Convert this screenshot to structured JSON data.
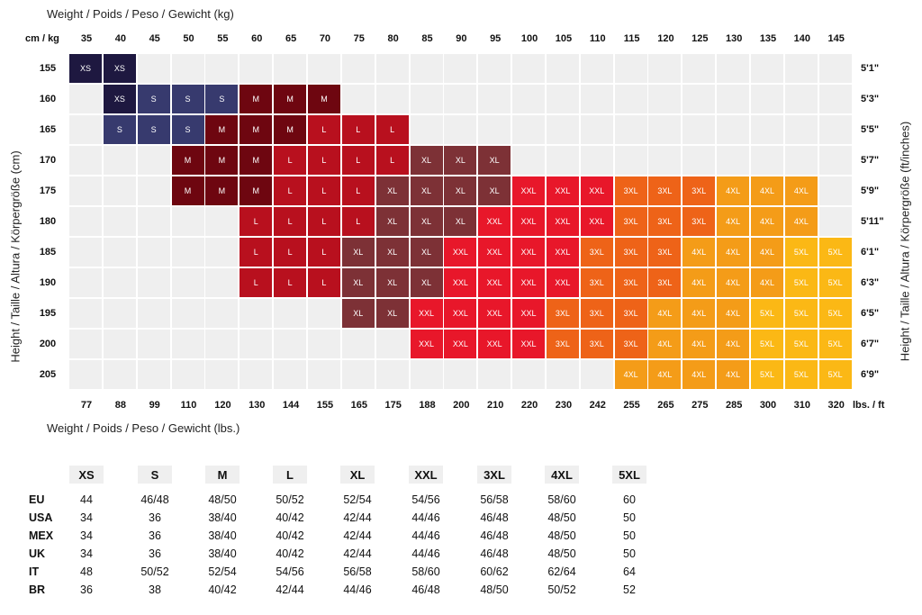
{
  "chart_data": {
    "type": "heatmap",
    "title_top": "Weight / Poids / Peso / Gewicht (kg)",
    "title_bottom": "Weight / Poids / Peso / Gewicht (lbs.)",
    "ylabel_left": "Height / Taille / Altura / Körpergröße (cm)",
    "ylabel_right": "Height / Taille / Altura / Körpergröße (ft/inches)",
    "corner_top": "cm / kg",
    "corner_bottom": "lbs. / ft",
    "kg": [
      "35",
      "40",
      "45",
      "50",
      "55",
      "60",
      "65",
      "70",
      "75",
      "80",
      "85",
      "90",
      "95",
      "100",
      "105",
      "110",
      "115",
      "120",
      "125",
      "130",
      "135",
      "140",
      "145"
    ],
    "lbs": [
      "77",
      "88",
      "99",
      "110",
      "120",
      "130",
      "144",
      "155",
      "165",
      "175",
      "188",
      "200",
      "210",
      "220",
      "230",
      "242",
      "255",
      "265",
      "275",
      "285",
      "300",
      "310",
      "320"
    ],
    "cm": [
      "155",
      "160",
      "165",
      "170",
      "175",
      "180",
      "185",
      "190",
      "195",
      "200",
      "205"
    ],
    "ft": [
      "5'1\"",
      "5'3\"",
      "5'5\"",
      "5'7\"",
      "5'9\"",
      "5'11\"",
      "6'1\"",
      "6'3\"",
      "6'5\"",
      "6'7\"",
      "6'9\""
    ],
    "cells": [
      [
        "XS",
        "XS",
        "",
        "",
        "",
        "",
        "",
        "",
        "",
        "",
        "",
        "",
        "",
        "",
        "",
        "",
        "",
        "",
        "",
        "",
        "",
        "",
        ""
      ],
      [
        "",
        "XS",
        "S",
        "S",
        "S",
        "M",
        "M",
        "M",
        "",
        "",
        "",
        "",
        "",
        "",
        "",
        "",
        "",
        "",
        "",
        "",
        "",
        "",
        ""
      ],
      [
        "",
        "S",
        "S",
        "S",
        "M",
        "M",
        "M",
        "L",
        "L",
        "L",
        "",
        "",
        "",
        "",
        "",
        "",
        "",
        "",
        "",
        "",
        "",
        "",
        ""
      ],
      [
        "",
        "",
        "",
        "M",
        "M",
        "M",
        "L",
        "L",
        "L",
        "L",
        "XL",
        "XL",
        "XL",
        "",
        "",
        "",
        "",
        "",
        "",
        "",
        "",
        "",
        ""
      ],
      [
        "",
        "",
        "",
        "M",
        "M",
        "M",
        "L",
        "L",
        "L",
        "XL",
        "XL",
        "XL",
        "XL",
        "XXL",
        "XXL",
        "XXL",
        "3XL",
        "3XL",
        "3XL",
        "4XL",
        "4XL",
        "4XL",
        ""
      ],
      [
        "",
        "",
        "",
        "",
        "",
        "L",
        "L",
        "L",
        "L",
        "XL",
        "XL",
        "XL",
        "XXL",
        "XXL",
        "XXL",
        "XXL",
        "3XL",
        "3XL",
        "3XL",
        "4XL",
        "4XL",
        "4XL",
        ""
      ],
      [
        "",
        "",
        "",
        "",
        "",
        "L",
        "L",
        "L",
        "XL",
        "XL",
        "XL",
        "XXL",
        "XXL",
        "XXL",
        "XXL",
        "3XL",
        "3XL",
        "3XL",
        "4XL",
        "4XL",
        "4XL",
        "5XL",
        "5XL"
      ],
      [
        "",
        "",
        "",
        "",
        "",
        "L",
        "L",
        "L",
        "XL",
        "XL",
        "XL",
        "XXL",
        "XXL",
        "XXL",
        "XXL",
        "3XL",
        "3XL",
        "3XL",
        "4XL",
        "4XL",
        "4XL",
        "5XL",
        "5XL"
      ],
      [
        "",
        "",
        "",
        "",
        "",
        "",
        "",
        "",
        "XL",
        "XL",
        "XXL",
        "XXL",
        "XXL",
        "XXL",
        "3XL",
        "3XL",
        "3XL",
        "4XL",
        "4XL",
        "4XL",
        "5XL",
        "5XL",
        "5XL"
      ],
      [
        "",
        "",
        "",
        "",
        "",
        "",
        "",
        "",
        "",
        "",
        "XXL",
        "XXL",
        "XXL",
        "XXL",
        "3XL",
        "3XL",
        "3XL",
        "4XL",
        "4XL",
        "4XL",
        "5XL",
        "5XL",
        "5XL"
      ],
      [
        "",
        "",
        "",
        "",
        "",
        "",
        "",
        "",
        "",
        "",
        "",
        "",
        "",
        "",
        "",
        "",
        "4XL",
        "4XL",
        "4XL",
        "4XL",
        "5XL",
        "5XL",
        "5XL"
      ]
    ],
    "size_colors": {
      "XS": "#1e1840",
      "S": "#373a6e",
      "M": "#6e0610",
      "L": "#b8101e",
      "XL": "#7d3136",
      "XXL": "#e8172a",
      "3XL": "#ee6318",
      "4XL": "#f49c18",
      "5XL": "#fbb815",
      "empty": "#efefef"
    }
  },
  "size_table": {
    "headers": [
      "XS",
      "S",
      "M",
      "L",
      "XL",
      "XXL",
      "3XL",
      "4XL",
      "5XL"
    ],
    "rows": [
      {
        "region": "EU",
        "values": [
          "44",
          "46/48",
          "48/50",
          "50/52",
          "52/54",
          "54/56",
          "56/58",
          "58/60",
          "60"
        ]
      },
      {
        "region": "USA",
        "values": [
          "34",
          "36",
          "38/40",
          "40/42",
          "42/44",
          "44/46",
          "46/48",
          "48/50",
          "50"
        ]
      },
      {
        "region": "MEX",
        "values": [
          "34",
          "36",
          "38/40",
          "40/42",
          "42/44",
          "44/46",
          "46/48",
          "48/50",
          "50"
        ]
      },
      {
        "region": "UK",
        "values": [
          "34",
          "36",
          "38/40",
          "40/42",
          "42/44",
          "44/46",
          "46/48",
          "48/50",
          "50"
        ]
      },
      {
        "region": "IT",
        "values": [
          "48",
          "50/52",
          "52/54",
          "54/56",
          "56/58",
          "58/60",
          "60/62",
          "62/64",
          "64"
        ]
      },
      {
        "region": "BR",
        "values": [
          "36",
          "38",
          "40/42",
          "42/44",
          "44/46",
          "46/48",
          "48/50",
          "50/52",
          "52"
        ]
      }
    ]
  }
}
